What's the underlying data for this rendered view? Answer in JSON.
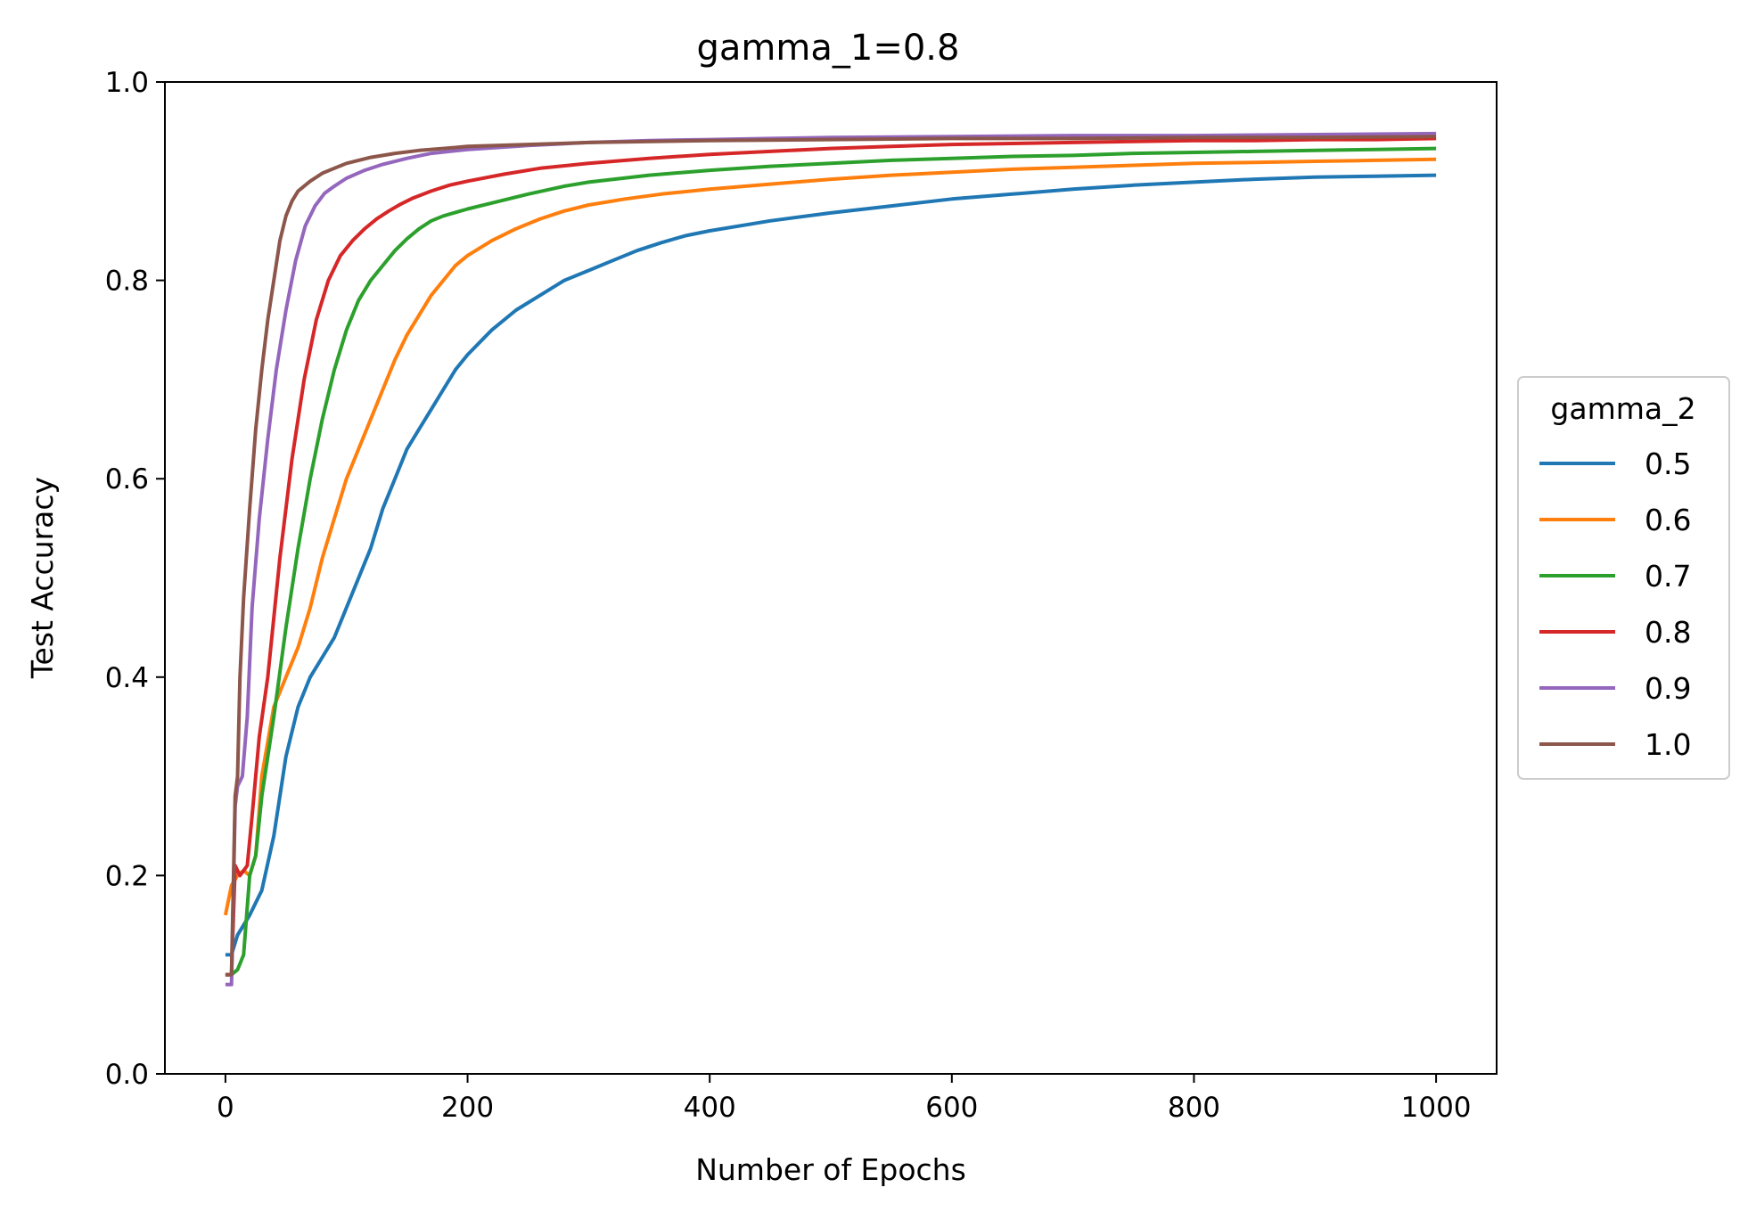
{
  "chart_data": {
    "type": "line",
    "title": "gamma_1=0.8",
    "xlabel": "Number of Epochs",
    "ylabel": "Test Accuracy",
    "xlim": [
      -50,
      1050
    ],
    "ylim": [
      0.0,
      1.0
    ],
    "xticks": [
      0,
      200,
      400,
      600,
      800,
      1000
    ],
    "yticks": [
      0.0,
      0.2,
      0.4,
      0.6,
      0.8,
      1.0
    ],
    "xtick_labels": [
      "0",
      "200",
      "400",
      "600",
      "800",
      "1000"
    ],
    "ytick_labels": [
      "0.0",
      "0.2",
      "0.4",
      "0.6",
      "0.8",
      "1.0"
    ],
    "grid": false,
    "legend": {
      "title": "gamma_2",
      "placement": "right-outside-center"
    },
    "series": [
      {
        "name": "0.5",
        "color": "#1f77b4",
        "points": [
          [
            0,
            0.12
          ],
          [
            5,
            0.12
          ],
          [
            10,
            0.14
          ],
          [
            20,
            0.16
          ],
          [
            30,
            0.185
          ],
          [
            40,
            0.24
          ],
          [
            50,
            0.32
          ],
          [
            60,
            0.37
          ],
          [
            70,
            0.4
          ],
          [
            80,
            0.42
          ],
          [
            90,
            0.44
          ],
          [
            100,
            0.47
          ],
          [
            110,
            0.5
          ],
          [
            120,
            0.53
          ],
          [
            130,
            0.57
          ],
          [
            140,
            0.6
          ],
          [
            150,
            0.63
          ],
          [
            160,
            0.65
          ],
          [
            170,
            0.67
          ],
          [
            180,
            0.69
          ],
          [
            190,
            0.71
          ],
          [
            200,
            0.725
          ],
          [
            220,
            0.75
          ],
          [
            240,
            0.77
          ],
          [
            260,
            0.785
          ],
          [
            280,
            0.8
          ],
          [
            300,
            0.81
          ],
          [
            320,
            0.82
          ],
          [
            340,
            0.83
          ],
          [
            360,
            0.838
          ],
          [
            380,
            0.845
          ],
          [
            400,
            0.85
          ],
          [
            450,
            0.86
          ],
          [
            500,
            0.868
          ],
          [
            550,
            0.875
          ],
          [
            600,
            0.882
          ],
          [
            650,
            0.887
          ],
          [
            700,
            0.892
          ],
          [
            750,
            0.896
          ],
          [
            800,
            0.899
          ],
          [
            850,
            0.902
          ],
          [
            900,
            0.904
          ],
          [
            950,
            0.905
          ],
          [
            1000,
            0.906
          ]
        ]
      },
      {
        "name": "0.6",
        "color": "#ff7f0e",
        "points": [
          [
            0,
            0.16
          ],
          [
            5,
            0.19
          ],
          [
            10,
            0.2
          ],
          [
            15,
            0.205
          ],
          [
            20,
            0.2
          ],
          [
            25,
            0.22
          ],
          [
            30,
            0.3
          ],
          [
            40,
            0.37
          ],
          [
            50,
            0.4
          ],
          [
            60,
            0.43
          ],
          [
            70,
            0.47
          ],
          [
            80,
            0.52
          ],
          [
            90,
            0.56
          ],
          [
            100,
            0.6
          ],
          [
            110,
            0.63
          ],
          [
            120,
            0.66
          ],
          [
            130,
            0.69
          ],
          [
            140,
            0.72
          ],
          [
            150,
            0.745
          ],
          [
            160,
            0.765
          ],
          [
            170,
            0.785
          ],
          [
            180,
            0.8
          ],
          [
            190,
            0.815
          ],
          [
            200,
            0.825
          ],
          [
            220,
            0.84
          ],
          [
            240,
            0.852
          ],
          [
            260,
            0.862
          ],
          [
            280,
            0.87
          ],
          [
            300,
            0.876
          ],
          [
            330,
            0.882
          ],
          [
            360,
            0.887
          ],
          [
            400,
            0.892
          ],
          [
            450,
            0.897
          ],
          [
            500,
            0.902
          ],
          [
            550,
            0.906
          ],
          [
            600,
            0.909
          ],
          [
            650,
            0.912
          ],
          [
            700,
            0.914
          ],
          [
            750,
            0.916
          ],
          [
            800,
            0.918
          ],
          [
            850,
            0.919
          ],
          [
            900,
            0.92
          ],
          [
            950,
            0.921
          ],
          [
            1000,
            0.922
          ]
        ]
      },
      {
        "name": "0.7",
        "color": "#2ca02c",
        "points": [
          [
            0,
            0.1
          ],
          [
            5,
            0.1
          ],
          [
            10,
            0.105
          ],
          [
            15,
            0.12
          ],
          [
            20,
            0.2
          ],
          [
            25,
            0.22
          ],
          [
            30,
            0.28
          ],
          [
            40,
            0.36
          ],
          [
            50,
            0.45
          ],
          [
            60,
            0.53
          ],
          [
            70,
            0.6
          ],
          [
            80,
            0.66
          ],
          [
            90,
            0.71
          ],
          [
            100,
            0.75
          ],
          [
            110,
            0.78
          ],
          [
            120,
            0.8
          ],
          [
            130,
            0.815
          ],
          [
            140,
            0.83
          ],
          [
            150,
            0.842
          ],
          [
            160,
            0.852
          ],
          [
            170,
            0.86
          ],
          [
            180,
            0.865
          ],
          [
            200,
            0.872
          ],
          [
            220,
            0.878
          ],
          [
            250,
            0.887
          ],
          [
            280,
            0.895
          ],
          [
            300,
            0.899
          ],
          [
            350,
            0.906
          ],
          [
            400,
            0.911
          ],
          [
            450,
            0.915
          ],
          [
            500,
            0.918
          ],
          [
            550,
            0.921
          ],
          [
            600,
            0.923
          ],
          [
            650,
            0.925
          ],
          [
            700,
            0.926
          ],
          [
            750,
            0.928
          ],
          [
            800,
            0.929
          ],
          [
            850,
            0.93
          ],
          [
            900,
            0.931
          ],
          [
            950,
            0.932
          ],
          [
            1000,
            0.933
          ]
        ]
      },
      {
        "name": "0.8",
        "color": "#d62728",
        "points": [
          [
            0,
            0.1
          ],
          [
            5,
            0.1
          ],
          [
            8,
            0.21
          ],
          [
            12,
            0.2
          ],
          [
            18,
            0.21
          ],
          [
            22,
            0.26
          ],
          [
            28,
            0.34
          ],
          [
            35,
            0.4
          ],
          [
            45,
            0.52
          ],
          [
            55,
            0.62
          ],
          [
            65,
            0.7
          ],
          [
            75,
            0.76
          ],
          [
            85,
            0.8
          ],
          [
            95,
            0.825
          ],
          [
            105,
            0.84
          ],
          [
            115,
            0.852
          ],
          [
            125,
            0.862
          ],
          [
            135,
            0.87
          ],
          [
            145,
            0.877
          ],
          [
            155,
            0.883
          ],
          [
            170,
            0.89
          ],
          [
            185,
            0.896
          ],
          [
            200,
            0.9
          ],
          [
            230,
            0.907
          ],
          [
            260,
            0.913
          ],
          [
            300,
            0.918
          ],
          [
            350,
            0.923
          ],
          [
            400,
            0.927
          ],
          [
            450,
            0.93
          ],
          [
            500,
            0.933
          ],
          [
            550,
            0.935
          ],
          [
            600,
            0.937
          ],
          [
            650,
            0.938
          ],
          [
            700,
            0.939
          ],
          [
            750,
            0.94
          ],
          [
            800,
            0.941
          ],
          [
            850,
            0.941
          ],
          [
            900,
            0.942
          ],
          [
            950,
            0.942
          ],
          [
            1000,
            0.943
          ]
        ]
      },
      {
        "name": "0.9",
        "color": "#9467bd",
        "points": [
          [
            0,
            0.09
          ],
          [
            5,
            0.09
          ],
          [
            8,
            0.27
          ],
          [
            10,
            0.29
          ],
          [
            14,
            0.3
          ],
          [
            18,
            0.36
          ],
          [
            22,
            0.47
          ],
          [
            28,
            0.56
          ],
          [
            35,
            0.64
          ],
          [
            42,
            0.71
          ],
          [
            50,
            0.77
          ],
          [
            58,
            0.82
          ],
          [
            66,
            0.855
          ],
          [
            74,
            0.875
          ],
          [
            82,
            0.888
          ],
          [
            90,
            0.895
          ],
          [
            100,
            0.903
          ],
          [
            115,
            0.911
          ],
          [
            130,
            0.917
          ],
          [
            150,
            0.923
          ],
          [
            170,
            0.928
          ],
          [
            200,
            0.932
          ],
          [
            250,
            0.936
          ],
          [
            300,
            0.939
          ],
          [
            350,
            0.941
          ],
          [
            400,
            0.942
          ],
          [
            450,
            0.943
          ],
          [
            500,
            0.944
          ],
          [
            600,
            0.945
          ],
          [
            700,
            0.946
          ],
          [
            800,
            0.946
          ],
          [
            900,
            0.947
          ],
          [
            1000,
            0.948
          ]
        ]
      },
      {
        "name": "1.0",
        "color": "#8c564b",
        "points": [
          [
            0,
            0.1
          ],
          [
            5,
            0.1
          ],
          [
            8,
            0.28
          ],
          [
            10,
            0.3
          ],
          [
            12,
            0.4
          ],
          [
            15,
            0.48
          ],
          [
            20,
            0.57
          ],
          [
            25,
            0.65
          ],
          [
            30,
            0.71
          ],
          [
            35,
            0.76
          ],
          [
            40,
            0.8
          ],
          [
            45,
            0.84
          ],
          [
            50,
            0.865
          ],
          [
            55,
            0.88
          ],
          [
            60,
            0.89
          ],
          [
            70,
            0.9
          ],
          [
            80,
            0.908
          ],
          [
            90,
            0.913
          ],
          [
            100,
            0.918
          ],
          [
            120,
            0.924
          ],
          [
            140,
            0.928
          ],
          [
            160,
            0.931
          ],
          [
            180,
            0.933
          ],
          [
            200,
            0.935
          ],
          [
            250,
            0.937
          ],
          [
            300,
            0.939
          ],
          [
            400,
            0.941
          ],
          [
            500,
            0.942
          ],
          [
            600,
            0.943
          ],
          [
            700,
            0.943
          ],
          [
            800,
            0.944
          ],
          [
            900,
            0.944
          ],
          [
            1000,
            0.945
          ]
        ]
      }
    ]
  }
}
